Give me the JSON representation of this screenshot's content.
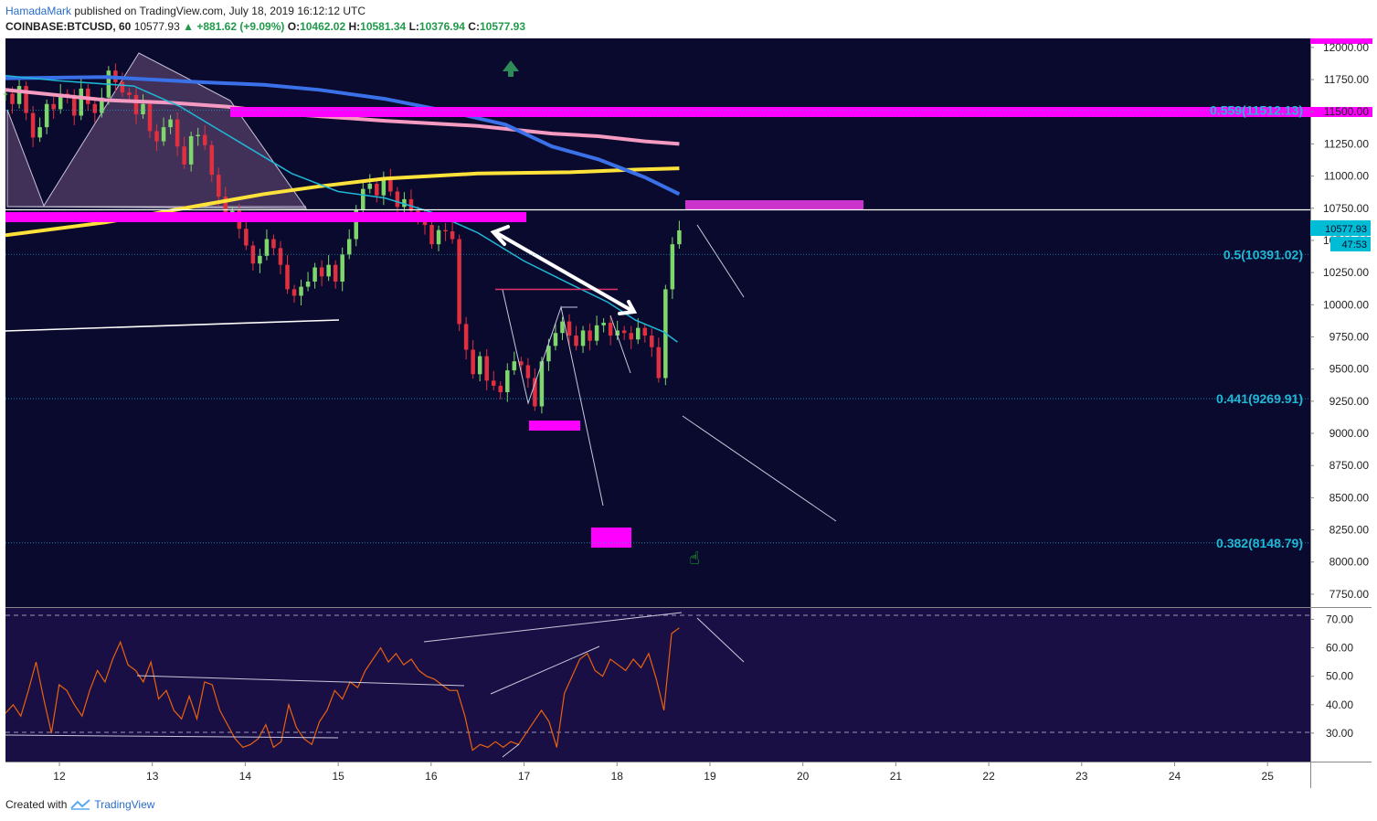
{
  "header": {
    "author": "HamadaMark",
    "published": "published on TradingView.com, July 18, 2019 16:12:12 UTC",
    "symbol": "COINBASE:BTCUSD, 60",
    "last": "10577.93",
    "change": "▲ +881.62 (+9.09%)",
    "o_label": "O:",
    "o_value": "10462.02",
    "h_label": "H:",
    "h_value": "10581.34",
    "l_label": "L:",
    "l_value": "10376.94",
    "c_label": "C:",
    "c_value": "10577.93"
  },
  "footer": {
    "created": "Created with",
    "brand": "TradingView"
  },
  "colors": {
    "background": "#0a0a2e",
    "rsi_background": "#1a0f45",
    "magenta": "#ff00ff",
    "ma_blue": "#3a70e8",
    "ma_pink": "#f59ac0",
    "ma_yellow": "#ffe23a",
    "ma_cyan": "#1fb8d6",
    "rsi_line": "#e8620e",
    "candle_up": "#7fd66a",
    "candle_down": "#e03040",
    "fib_text": "#1fb8d6"
  },
  "chart_data": {
    "type": "candlestick",
    "price_axis": {
      "ticks": [
        12000,
        11750,
        11500,
        11250,
        11000,
        10750,
        10500,
        10250,
        10000,
        9750,
        9500,
        9250,
        9000,
        8750,
        8500,
        8250,
        8000,
        7750
      ],
      "tick_labels": [
        "12000.00",
        "11750.00",
        "11500.00",
        "11250.00",
        "11000.00",
        "10750.00",
        "10500.00",
        "10250.00",
        "10000.00",
        "9750.00",
        "9500.00",
        "9250.00",
        "9000.00",
        "8750.00",
        "8500.00",
        "8250.00",
        "8000.00",
        "7750.00"
      ],
      "range": [
        7650,
        12070
      ]
    },
    "rsi_axis": {
      "ticks": [
        70,
        60,
        50,
        40,
        30
      ],
      "tick_labels": [
        "70.00",
        "60.00",
        "50.00",
        "40.00",
        "30.00"
      ],
      "range": [
        20,
        74
      ]
    },
    "x_axis": {
      "range": [
        11.42,
        25.46
      ],
      "ticks": [
        12,
        13,
        14,
        15,
        16,
        17,
        18,
        19,
        20,
        21,
        22,
        23,
        24,
        25
      ],
      "tick_labels": [
        "12",
        "13",
        "14",
        "15",
        "16",
        "17",
        "18",
        "19",
        "20",
        "21",
        "22",
        "23",
        "24",
        "25"
      ]
    },
    "last_price": {
      "value": 10577.93,
      "label": "10577.93",
      "countdown": "47:53"
    },
    "fib_levels": [
      {
        "label": "0.559(11512.13)",
        "price": 11512.13
      },
      {
        "label": "0.5(10391.02)",
        "price": 10391.02
      },
      {
        "label": "0.441(9269.91)",
        "price": 9269.91
      },
      {
        "label": "0.382(8148.79)",
        "price": 8148.79
      }
    ],
    "candles_close": [
      11640,
      11560,
      11700,
      11490,
      11300,
      11380,
      11560,
      11520,
      11640,
      11620,
      11470,
      11680,
      11560,
      11490,
      11610,
      11820,
      11730,
      11650,
      11630,
      11480,
      11560,
      11350,
      11270,
      11380,
      11440,
      11230,
      11090,
      11310,
      11320,
      11240,
      11010,
      10840,
      10700,
      10730,
      10590,
      10460,
      10320,
      10380,
      10510,
      10440,
      10310,
      10120,
      10070,
      10140,
      10180,
      10290,
      10220,
      10310,
      10180,
      10390,
      10510,
      10740,
      10900,
      10940,
      10850,
      10980,
      10880,
      10760,
      10820,
      10730,
      10680,
      10620,
      10470,
      10580,
      10570,
      10510,
      9850,
      9650,
      9460,
      9600,
      9410,
      9370,
      9320,
      9490,
      9560,
      9530,
      9430,
      9210,
      9560,
      9680,
      9780,
      9870,
      9760,
      9680,
      9800,
      9720,
      9840,
      9860,
      9760,
      9800,
      9780,
      9730,
      9820,
      9760,
      9670,
      9430,
      10120,
      10470,
      10578
    ],
    "ema_blue": [
      [
        11.42,
        11760
      ],
      [
        12.5,
        11770
      ],
      [
        13.5,
        11730
      ],
      [
        14.2,
        11710
      ],
      [
        14.8,
        11670
      ],
      [
        15.5,
        11600
      ],
      [
        16.2,
        11500
      ],
      [
        16.8,
        11400
      ],
      [
        17.3,
        11230
      ],
      [
        17.8,
        11130
      ],
      [
        18.3,
        10990
      ],
      [
        18.67,
        10860
      ]
    ],
    "ema_pink": [
      [
        11.42,
        11670
      ],
      [
        12.5,
        11590
      ],
      [
        13.2,
        11570
      ],
      [
        13.8,
        11540
      ],
      [
        14.5,
        11480
      ],
      [
        15.5,
        11430
      ],
      [
        16.5,
        11390
      ],
      [
        17.3,
        11330
      ],
      [
        17.8,
        11310
      ],
      [
        18.3,
        11270
      ],
      [
        18.67,
        11250
      ]
    ],
    "ema_yellow": [
      [
        11.42,
        10540
      ],
      [
        12.5,
        10640
      ],
      [
        13.5,
        10770
      ],
      [
        14.2,
        10860
      ],
      [
        14.8,
        10920
      ],
      [
        15.5,
        10980
      ],
      [
        16.5,
        11020
      ],
      [
        17.5,
        11030
      ],
      [
        18.2,
        11050
      ],
      [
        18.67,
        11060
      ]
    ],
    "ema_cyan": [
      [
        11.42,
        11780
      ],
      [
        12.0,
        11740
      ],
      [
        12.8,
        11700
      ],
      [
        13.3,
        11540
      ],
      [
        13.9,
        11280
      ],
      [
        14.5,
        11020
      ],
      [
        15.0,
        10880
      ],
      [
        15.5,
        10830
      ],
      [
        16.0,
        10720
      ],
      [
        16.5,
        10560
      ],
      [
        17.0,
        10340
      ],
      [
        17.5,
        10160
      ],
      [
        17.9,
        10020
      ],
      [
        18.2,
        9880
      ],
      [
        18.5,
        9790
      ],
      [
        18.65,
        9710
      ]
    ],
    "rsi": [
      37,
      40,
      36,
      45,
      55,
      42,
      30,
      47,
      45,
      40,
      36,
      45,
      52,
      48,
      56,
      62,
      54,
      52,
      48,
      55,
      42,
      45,
      38,
      35,
      43,
      35,
      48,
      47,
      38,
      33,
      28,
      25,
      26,
      28,
      33,
      25,
      27,
      40,
      32,
      28,
      26,
      34,
      38,
      45,
      42,
      48,
      46,
      52,
      56,
      60,
      55,
      58,
      54,
      56,
      52,
      50,
      49,
      47,
      45,
      45,
      36,
      24,
      26,
      25,
      27,
      25,
      27,
      26,
      30,
      34,
      38,
      34,
      25,
      44,
      50,
      56,
      58,
      52,
      50,
      56,
      54,
      52,
      56,
      53,
      58,
      49,
      38,
      65,
      67
    ]
  }
}
